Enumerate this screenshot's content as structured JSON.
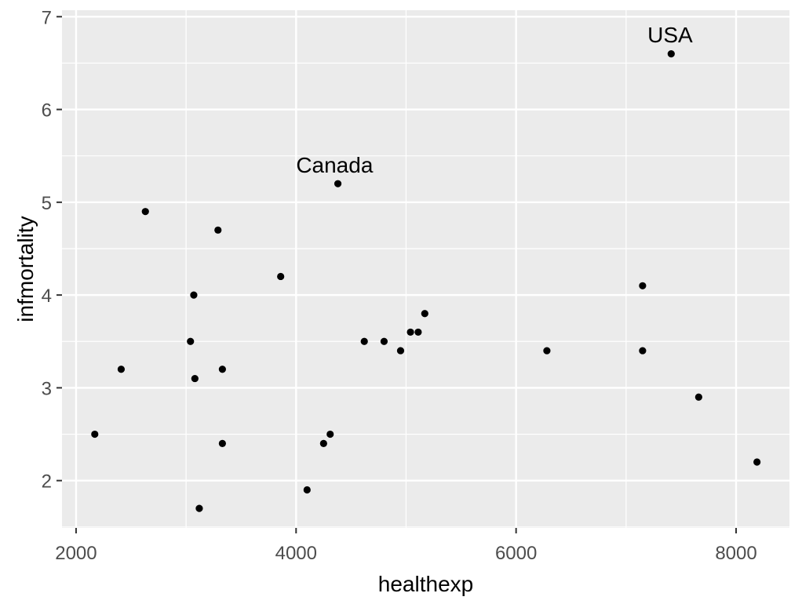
{
  "chart_data": {
    "type": "scatter",
    "title": "",
    "xlabel": "healthexp",
    "ylabel": "infmortality",
    "x_ticks": [
      2000,
      4000,
      6000,
      8000
    ],
    "x_minor_gridlines": [
      3000,
      5000,
      7000
    ],
    "y_ticks": [
      2,
      3,
      4,
      5,
      6,
      7
    ],
    "y_minor_gridlines": [
      1.5,
      2.5,
      3.5,
      4.5,
      5.5,
      6.5
    ],
    "xlim": [
      1872,
      8485
    ],
    "ylim": [
      1.49,
      7.07
    ],
    "grid": true,
    "legend": false,
    "points": [
      {
        "x": 2170,
        "y": 2.5
      },
      {
        "x": 2410,
        "y": 3.2
      },
      {
        "x": 2630,
        "y": 4.9
      },
      {
        "x": 3040,
        "y": 3.5
      },
      {
        "x": 3070,
        "y": 4.0
      },
      {
        "x": 3080,
        "y": 3.1
      },
      {
        "x": 3120,
        "y": 1.7
      },
      {
        "x": 3290,
        "y": 4.7
      },
      {
        "x": 3330,
        "y": 3.2
      },
      {
        "x": 3330,
        "y": 2.4
      },
      {
        "x": 3860,
        "y": 4.2
      },
      {
        "x": 4100,
        "y": 1.9
      },
      {
        "x": 4250,
        "y": 2.4
      },
      {
        "x": 4310,
        "y": 2.5
      },
      {
        "x": 4380,
        "y": 5.2
      },
      {
        "x": 4620,
        "y": 3.5
      },
      {
        "x": 4800,
        "y": 3.5
      },
      {
        "x": 4950,
        "y": 3.4
      },
      {
        "x": 5040,
        "y": 3.6
      },
      {
        "x": 5110,
        "y": 3.6
      },
      {
        "x": 5170,
        "y": 3.8
      },
      {
        "x": 6280,
        "y": 3.4
      },
      {
        "x": 7150,
        "y": 4.1
      },
      {
        "x": 7150,
        "y": 3.4
      },
      {
        "x": 7410,
        "y": 6.6
      },
      {
        "x": 7660,
        "y": 2.9
      },
      {
        "x": 8190,
        "y": 2.2
      }
    ],
    "annotations": [
      {
        "label": "Canada",
        "x": 4350,
        "y": 5.4
      },
      {
        "label": "USA",
        "x": 7400,
        "y": 6.8
      }
    ],
    "style": {
      "panel_bg": "#EBEBEB",
      "grid_color": "#FFFFFF",
      "point_color": "#000000",
      "tick_label_color": "#4D4D4D",
      "tick_mark_color": "#333333",
      "axis_title_color": "#000000",
      "annotation_color": "#000000"
    }
  }
}
